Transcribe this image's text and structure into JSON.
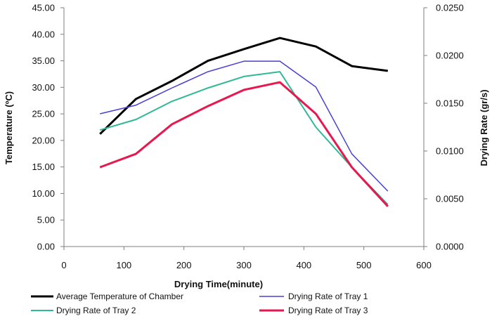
{
  "chart_data": {
    "type": "line",
    "title": "",
    "xlabel": "Drying Time(minute)",
    "ylabel": "Temperature (ºC)",
    "ylabel_right": "Drying Rate (gr/s)",
    "xlim": [
      0,
      600
    ],
    "xticks": [
      0,
      100,
      200,
      300,
      400,
      500,
      600
    ],
    "ylim": [
      0,
      45
    ],
    "yticks": [
      "0.00",
      "5.00",
      "10.00",
      "15.00",
      "20.00",
      "25.00",
      "30.00",
      "35.00",
      "40.00",
      "45.00"
    ],
    "ylim_right": [
      0,
      0.025
    ],
    "yticks_right": [
      "0.0000",
      "0.0050",
      "0.0100",
      "0.0150",
      "0.0200",
      "0.0250"
    ],
    "grid": false,
    "legend_position": "bottom",
    "series": [
      {
        "name": "Average Temperature of Chamber",
        "axis": "left",
        "color": "#000000",
        "width": 3,
        "x": [
          60,
          120,
          180,
          240,
          300,
          360,
          420,
          480,
          540
        ],
        "values": [
          21.2,
          27.8,
          31.2,
          35.0,
          37.2,
          39.3,
          37.7,
          34.0,
          33.1
        ]
      },
      {
        "name": "Drying Rate of Tray  1",
        "axis": "right",
        "color": "#4a3fd6",
        "width": 1.5,
        "x": [
          60,
          120,
          180,
          240,
          300,
          360,
          420,
          480,
          540
        ],
        "values": [
          0.0139,
          0.0148,
          0.0166,
          0.0183,
          0.0194,
          0.0194,
          0.0167,
          0.0097,
          0.0058
        ]
      },
      {
        "name": "Drying Rate of  Tray 2",
        "axis": "right",
        "color": "#2fb894",
        "width": 2,
        "x": [
          60,
          120,
          180,
          240,
          300,
          360,
          420,
          480,
          540
        ],
        "values": [
          0.0122,
          0.0133,
          0.0152,
          0.0166,
          0.0178,
          0.0183,
          0.0125,
          0.0083,
          0.0044
        ]
      },
      {
        "name": "Drying Rate of Tray 3",
        "axis": "right",
        "color": "#e8174e",
        "width": 3,
        "x": [
          60,
          120,
          180,
          240,
          300,
          360,
          420,
          480,
          540
        ],
        "values": [
          0.0083,
          0.0097,
          0.0128,
          0.0147,
          0.0164,
          0.0172,
          0.0139,
          0.0083,
          0.0042
        ]
      }
    ]
  }
}
